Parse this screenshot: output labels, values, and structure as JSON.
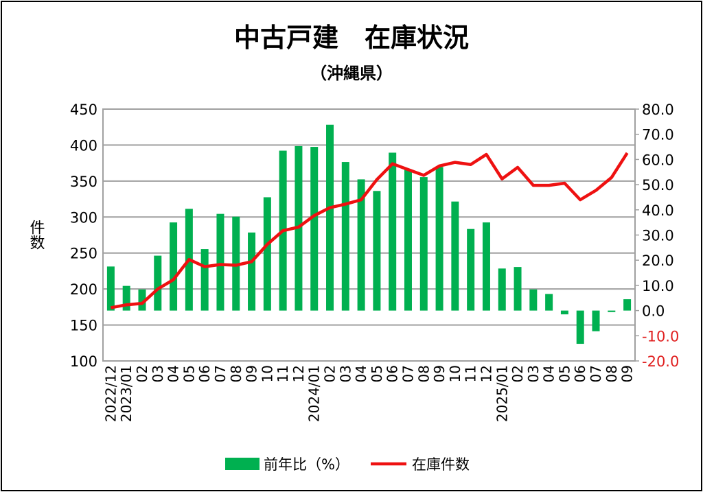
{
  "chart_data": {
    "type": "bar+line",
    "title": "中古戸建　在庫状況",
    "subtitle": "（沖縄県）",
    "ylabel_left": "件数",
    "ylim_left": [
      100,
      450
    ],
    "yticks_left": [
      "450",
      "400",
      "350",
      "300",
      "250",
      "200",
      "150",
      "100"
    ],
    "ylim_right": [
      -20,
      80
    ],
    "yticks_right": [
      "80.0",
      "70.0",
      "60.0",
      "50.0",
      "40.0",
      "30.0",
      "20.0",
      "10.0",
      "0.0",
      "-10.0",
      "-20.0"
    ],
    "categories": [
      "2022/12",
      "2023/01",
      "02",
      "03",
      "04",
      "05",
      "06",
      "07",
      "08",
      "09",
      "10",
      "11",
      "12",
      "2024/01",
      "02",
      "03",
      "04",
      "05",
      "06",
      "07",
      "08",
      "09",
      "10",
      "11",
      "12",
      "2025/01",
      "02",
      "03",
      "04",
      "05",
      "06",
      "07",
      "08",
      "09"
    ],
    "series": [
      {
        "name": "前年比（%）",
        "type": "bar",
        "axis": "right",
        "color": "#00B050",
        "values": [
          17.5,
          9.8,
          8.4,
          21.8,
          35.0,
          40.4,
          24.4,
          38.4,
          37.3,
          31.0,
          45.0,
          63.5,
          65.3,
          65.0,
          73.8,
          59.0,
          52.1,
          47.5,
          62.7,
          56.1,
          53.0,
          57.0,
          43.3,
          32.4,
          35.0,
          16.7,
          17.3,
          8.4,
          6.6,
          -1.5,
          -13.2,
          -8.2,
          -0.6,
          4.5
        ]
      },
      {
        "name": "在庫件数",
        "type": "line",
        "axis": "left",
        "color": "#EE1111",
        "values": [
          174,
          178,
          180,
          200,
          213,
          241,
          231,
          234,
          233,
          238,
          262,
          281,
          286,
          302,
          313,
          318,
          324,
          352,
          374,
          366,
          358,
          371,
          376,
          373,
          387,
          353,
          369,
          344,
          344,
          347,
          324,
          337,
          355,
          389
        ]
      }
    ],
    "legend": "bottom",
    "grid": true,
    "negative_tick_color": "#E02020"
  }
}
